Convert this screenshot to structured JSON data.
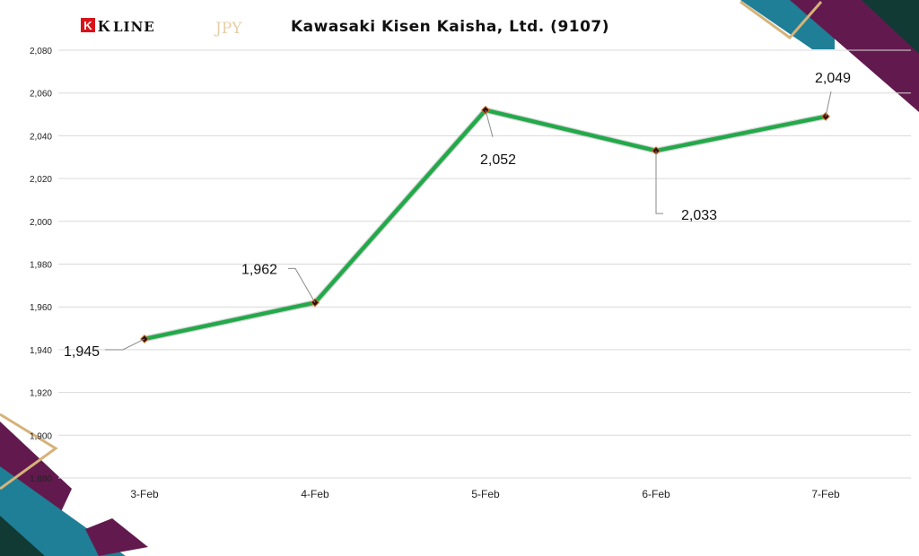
{
  "header": {
    "brand": "LINE",
    "brand_mark": "K",
    "brand_k": "K",
    "currency": "JPY",
    "title": "Kawasaki Kisen Kaisha, Ltd. (9107)"
  },
  "colors": {
    "line": "#22a94a",
    "marker": "#2b0f0f",
    "grid": "#d9d9d9",
    "logo_red": "#d7141a",
    "purple": "#621a4e",
    "teal": "#1f7f96",
    "gold": "#d6b27a",
    "darkgreen": "#123a35"
  },
  "chart_data": {
    "type": "line",
    "title": "Kawasaki Kisen Kaisha, Ltd. (9107)",
    "categories": [
      "3-Feb",
      "4-Feb",
      "5-Feb",
      "6-Feb",
      "7-Feb"
    ],
    "series": [
      {
        "values": [
          1945,
          1962,
          2052,
          2033,
          2049
        ]
      }
    ],
    "data_labels": [
      "1,945",
      "1,962",
      "2,052",
      "2,033",
      "2,049"
    ],
    "y_ticks": [
      "1,880",
      "1,900",
      "1,920",
      "1,940",
      "1,960",
      "1,980",
      "2,000",
      "2,020",
      "2,040",
      "2,060",
      "2,080"
    ],
    "ylim": [
      1880,
      2080
    ],
    "grid": true,
    "legend": "none"
  }
}
